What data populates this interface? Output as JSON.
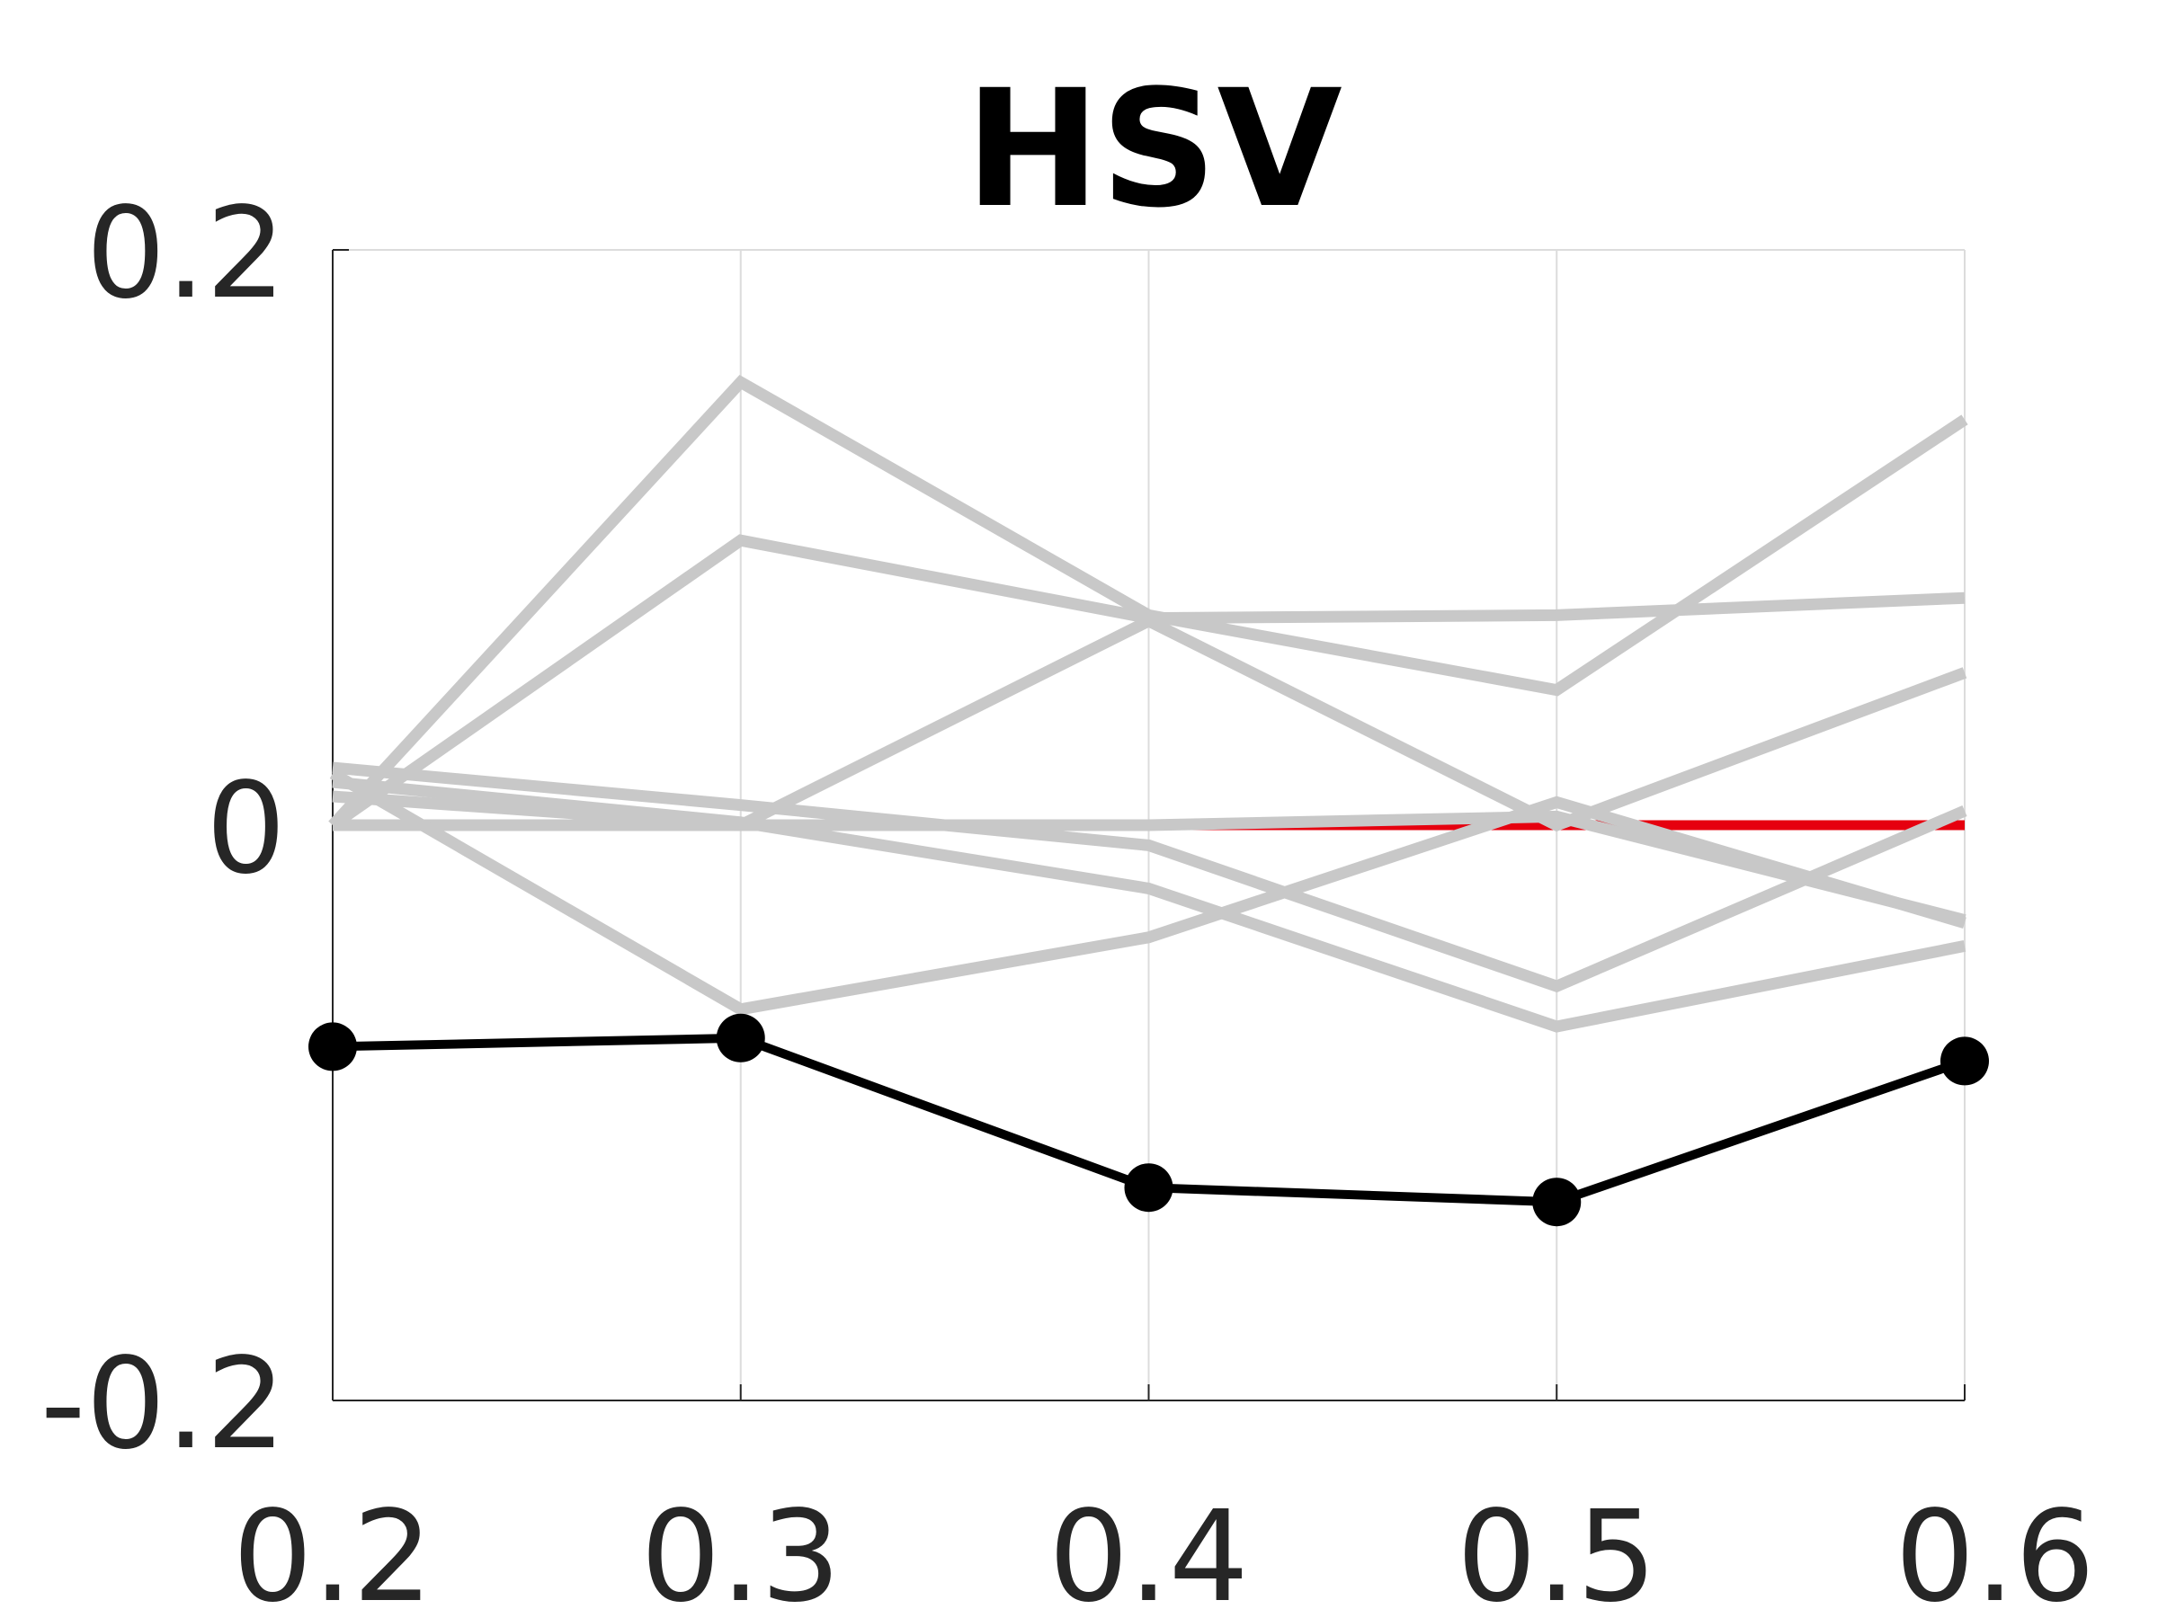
{
  "chart_data": {
    "type": "line",
    "title": "HSV",
    "xlabel": "",
    "ylabel": "",
    "x": [
      0.2,
      0.3,
      0.4,
      0.5,
      0.6
    ],
    "xlim": [
      0.2,
      0.6
    ],
    "ylim": [
      -0.2,
      0.2
    ],
    "x_tick_labels": [
      "0.2",
      "0.3",
      "0.4",
      "0.5",
      "0.6"
    ],
    "y_ticks": [
      -0.2,
      0,
      0.2
    ],
    "y_tick_labels": [
      "-0.2",
      "0",
      "0.2"
    ],
    "grid": "vertical",
    "reference_line": {
      "y": 0,
      "color": "#e6000f"
    },
    "background_series_color": "#c8c8c8",
    "background_series": [
      {
        "values": [
          0.0,
          0.154,
          0.073,
          0.047,
          0.141
        ]
      },
      {
        "values": [
          0.0,
          0.099,
          0.072,
          0.073,
          0.079
        ]
      },
      {
        "values": [
          0.0,
          0.0,
          0.071,
          0.0,
          0.053
        ]
      },
      {
        "values": [
          0.018,
          -0.064,
          -0.039,
          0.008,
          -0.034
        ]
      },
      {
        "values": [
          0.02,
          0.007,
          -0.007,
          -0.056,
          0.005
        ]
      },
      {
        "values": [
          0.015,
          0.001,
          -0.022,
          -0.07,
          -0.042
        ]
      },
      {
        "values": [
          0.01,
          0.0,
          0.0,
          0.003,
          -0.033
        ]
      }
    ],
    "main_series": {
      "values": [
        -0.077,
        -0.074,
        -0.126,
        -0.131,
        -0.082
      ],
      "color": "#000000"
    }
  }
}
